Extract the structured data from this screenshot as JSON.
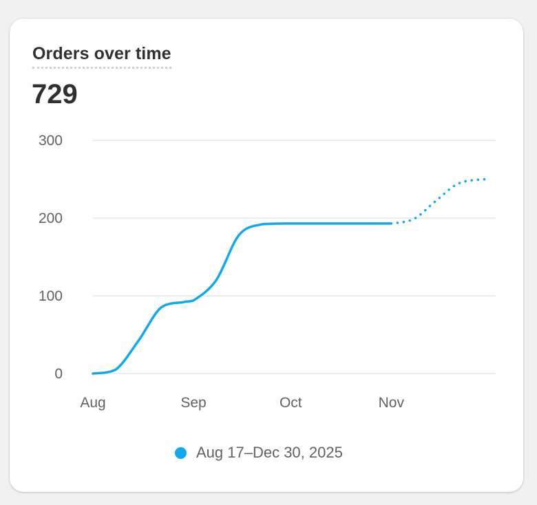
{
  "card": {
    "title": "Orders over time",
    "total": "729"
  },
  "chart_data": {
    "type": "line",
    "x": [
      "2025-08-01",
      "2025-08-08",
      "2025-08-15",
      "2025-08-22",
      "2025-08-29",
      "2025-09-01",
      "2025-09-08",
      "2025-09-15",
      "2025-09-22",
      "2025-09-29",
      "2025-10-01",
      "2025-10-08",
      "2025-10-15",
      "2025-10-22",
      "2025-10-29",
      "2025-11-01",
      "2025-11-08",
      "2025-11-15",
      "2025-11-22",
      "2025-11-30"
    ],
    "x_format": "date",
    "xticks": [
      "Aug",
      "Sep",
      "Oct",
      "Nov"
    ],
    "yticks": [
      "0",
      "100",
      "200",
      "300"
    ],
    "ylim": [
      0,
      300
    ],
    "series": [
      {
        "name": "Aug 17–Dec 30, 2025",
        "color": "#10a8ef",
        "values": [
          0,
          5,
          42,
          85,
          92,
          94,
          120,
          178,
          192,
          193,
          193,
          193,
          193,
          193,
          193,
          193,
          199,
          223,
          245,
          250
        ],
        "solid_until_index": 15,
        "projected_style": "dotted"
      }
    ],
    "grid": true,
    "legend": "bottom-center"
  },
  "legend": {
    "label": "Aug 17–Dec 30, 2025"
  }
}
